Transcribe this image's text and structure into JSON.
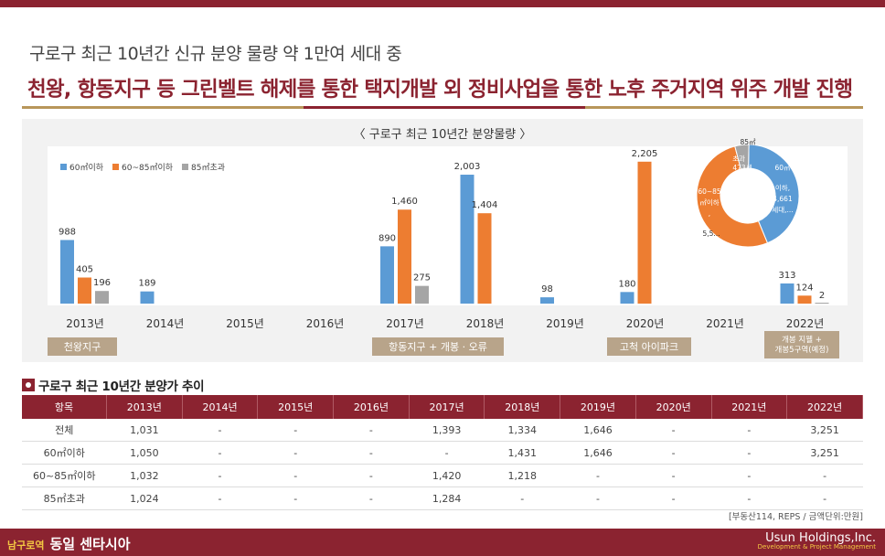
{
  "header": {
    "subtitle": "구로구 최근 10년간 신규 분양 물량 약 1만여 세대 중",
    "headline": "천왕, 항동지구 등 그린벨트 해제를 통한 택지개발 외 정비사업을 통한 노후 주거지역 위주 개발 진행"
  },
  "colors": {
    "brand": "#8b2330",
    "gold": "#b8965a",
    "blue": "#5b9bd5",
    "orange": "#ed7d31",
    "gray": "#a5a5a5"
  },
  "chart_data": [
    {
      "type": "bar",
      "title": "〈 구로구 최근 10년간 분양물량 〉",
      "categories": [
        "2013년",
        "2014년",
        "2015년",
        "2016년",
        "2017년",
        "2018년",
        "2019년",
        "2020년",
        "2021년",
        "2022년"
      ],
      "series": [
        {
          "name": "60㎡이하",
          "values": [
            988,
            189,
            0,
            0,
            890,
            2003,
            98,
            180,
            0,
            313
          ]
        },
        {
          "name": "60~85㎡이하",
          "values": [
            405,
            0,
            0,
            0,
            1460,
            1404,
            0,
            2205,
            0,
            124
          ]
        },
        {
          "name": "85㎡초과",
          "values": [
            196,
            0,
            0,
            0,
            275,
            0,
            0,
            0,
            0,
            2
          ]
        }
      ],
      "value_labels": [
        [
          "988",
          "189",
          "",
          "",
          "890",
          "2,003",
          "98",
          "180",
          "",
          "313"
        ],
        [
          "405",
          "",
          "",
          "",
          "1,460",
          "1,404",
          "",
          "2,205",
          "",
          "124"
        ],
        [
          "196",
          "",
          "",
          "",
          "275",
          "",
          "",
          "",
          "",
          "2"
        ]
      ],
      "ylim": [
        0,
        2400
      ],
      "legend": "top-left",
      "grid": false
    },
    {
      "type": "pie",
      "slices": [
        {
          "label": "60㎡이하",
          "value": "4,661"
        },
        {
          "label": "60~85㎡이하",
          "value": "5,5.."
        },
        {
          "label": "85㎡초과",
          "value": "473"
        }
      ],
      "values": [
        4661,
        5598,
        473
      ],
      "outer_label": "85㎡",
      "inner_texts": [
        "초과",
        "473세",
        "대,...",
        "60㎡",
        "이하,",
        "4,661",
        "세대,...",
        "60~85",
        "㎡이하",
        ",",
        "5,5..."
      ]
    }
  ],
  "districts": [
    {
      "label": "천왕지구"
    },
    {
      "label": "항동지구 + 개봉 · 오류"
    },
    {
      "label": "고척 아이파크"
    },
    {
      "label": "개봉 지웰 + 개봉5구역(예정)"
    }
  ],
  "price_table": {
    "title": "구로구 최근 10년간 분양가 추이",
    "headers": [
      "항목",
      "2013년",
      "2014년",
      "2015년",
      "2016년",
      "2017년",
      "2018년",
      "2019년",
      "2020년",
      "2021년",
      "2022년"
    ],
    "rows": [
      [
        "전체",
        "1,031",
        "-",
        "-",
        "-",
        "1,393",
        "1,334",
        "1,646",
        "-",
        "-",
        "3,251"
      ],
      [
        "60㎡이하",
        "1,050",
        "-",
        "-",
        "-",
        "-",
        "1,431",
        "1,646",
        "-",
        "-",
        "3,251"
      ],
      [
        "60~85㎡이하",
        "1,032",
        "-",
        "-",
        "-",
        "1,420",
        "1,218",
        "-",
        "-",
        "-",
        "-"
      ],
      [
        "85㎡초과",
        "1,024",
        "-",
        "-",
        "-",
        "1,284",
        "-",
        "-",
        "-",
        "-",
        "-"
      ]
    ]
  },
  "source": "[부동산114, REPS / 금액단위:만원]",
  "footer": {
    "tag": "남구로역",
    "project": "동일 센타시아",
    "company": "Usun Holdings,Inc.",
    "tagline": "Development & Project Management"
  }
}
